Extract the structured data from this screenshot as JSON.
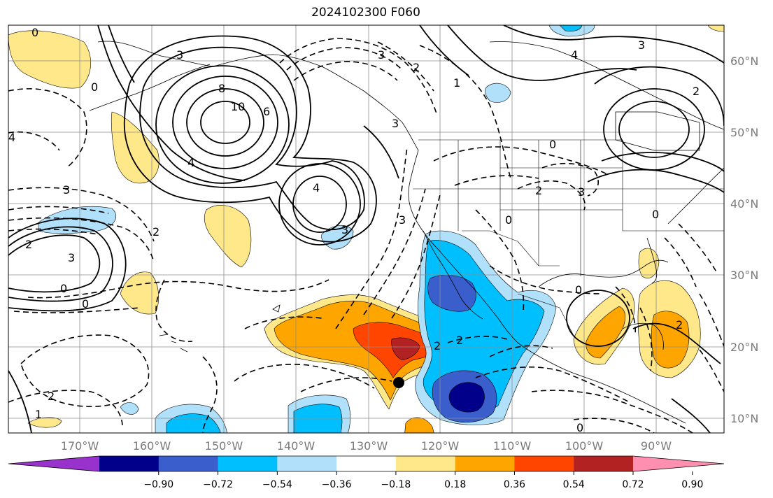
{
  "title": "2024102300 F060",
  "map": {
    "lat_labels": [
      "60°N",
      "50°N",
      "40°N",
      "30°N",
      "20°N",
      "10°N"
    ],
    "lon_labels": [
      "170°W",
      "160°W",
      "150°W",
      "140°W",
      "130°W",
      "120°W",
      "110°W",
      "100°W",
      "90°W"
    ],
    "contour_labels": [
      "0",
      "3",
      "8",
      "10",
      "6",
      "4",
      "4",
      "3",
      "3",
      "2",
      "3",
      "0",
      "0",
      "2",
      "1",
      "4",
      "3",
      "2",
      "0",
      "0",
      "3",
      "2",
      "3",
      "0",
      "2",
      "2",
      "2",
      "0",
      "2",
      "0",
      "3",
      "4",
      "3",
      "2",
      "1",
      "0"
    ],
    "marker": "storm-center"
  },
  "colorbar": {
    "ticks": [
      "−0.90",
      "−0.72",
      "−0.54",
      "−0.36",
      "−0.18",
      "0.18",
      "0.36",
      "0.54",
      "0.72",
      "0.90"
    ],
    "colors": [
      "#9932cc",
      "#00008b",
      "#3a5fcd",
      "#00bfff",
      "#b0e0fa",
      "#ffffff",
      "#ffe88a",
      "#ffa500",
      "#ff4500",
      "#b22222",
      "#ff8fb1"
    ]
  }
}
